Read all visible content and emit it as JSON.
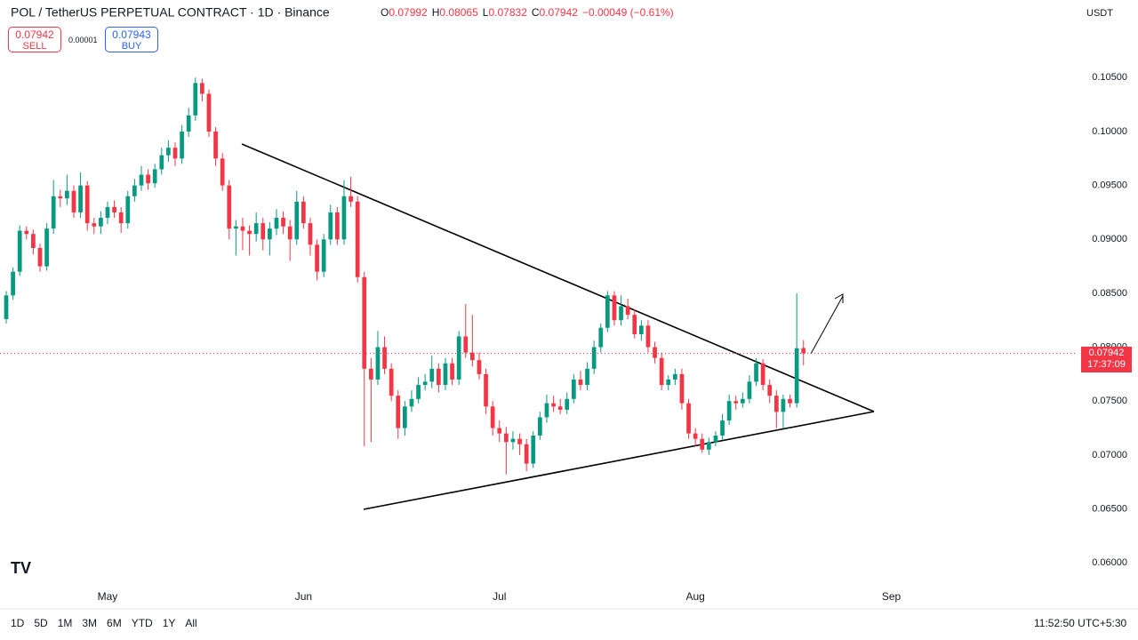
{
  "chart_data": {
    "type": "candlestick",
    "title": "POL / TetherUS PERPETUAL CONTRACT · 1D · Binance",
    "up_color": "#089981",
    "down_color": "#f23645",
    "xlim": [
      -0.92,
      158.3
    ],
    "ylim": [
      0.0582,
      0.1122
    ],
    "xticks": [
      {
        "value": 15,
        "label": "May"
      },
      {
        "value": 44,
        "label": "Jun"
      },
      {
        "value": 73,
        "label": "Jul"
      },
      {
        "value": 102,
        "label": "Aug"
      },
      {
        "value": 131,
        "label": "Sep"
      }
    ],
    "yticks": [
      {
        "value": 0.105,
        "label": "0.10500"
      },
      {
        "value": 0.1,
        "label": "0.10000"
      },
      {
        "value": 0.095,
        "label": "0.09500"
      },
      {
        "value": 0.09,
        "label": "0.09000"
      },
      {
        "value": 0.085,
        "label": "0.08500"
      },
      {
        "value": 0.08,
        "label": "0.08000"
      },
      {
        "value": 0.075,
        "label": "0.07500"
      },
      {
        "value": 0.07,
        "label": "0.07000"
      },
      {
        "value": 0.065,
        "label": "0.06500"
      },
      {
        "value": 0.06,
        "label": "0.06000"
      }
    ],
    "candles": [
      [
        0.0826,
        0.0852,
        0.0822,
        0.0848
      ],
      [
        0.0848,
        0.0874,
        0.0844,
        0.087
      ],
      [
        0.087,
        0.0913,
        0.0866,
        0.0908
      ],
      [
        0.0908,
        0.0912,
        0.09,
        0.0905
      ],
      [
        0.0905,
        0.0909,
        0.0886,
        0.0892
      ],
      [
        0.0892,
        0.0896,
        0.087,
        0.0875
      ],
      [
        0.0875,
        0.0915,
        0.0871,
        0.091
      ],
      [
        0.091,
        0.0955,
        0.0905,
        0.094
      ],
      [
        0.094,
        0.0946,
        0.093,
        0.0938
      ],
      [
        0.0938,
        0.096,
        0.0932,
        0.0945
      ],
      [
        0.0945,
        0.095,
        0.092,
        0.0925
      ],
      [
        0.0925,
        0.0962,
        0.092,
        0.095
      ],
      [
        0.095,
        0.0954,
        0.0908,
        0.0915
      ],
      [
        0.0915,
        0.092,
        0.0905,
        0.0912
      ],
      [
        0.0912,
        0.0926,
        0.0905,
        0.092
      ],
      [
        0.092,
        0.0935,
        0.0914,
        0.093
      ],
      [
        0.093,
        0.0936,
        0.092,
        0.0925
      ],
      [
        0.0925,
        0.093,
        0.0906,
        0.0915
      ],
      [
        0.0915,
        0.0945,
        0.091,
        0.094
      ],
      [
        0.094,
        0.0956,
        0.0935,
        0.095
      ],
      [
        0.095,
        0.0968,
        0.0945,
        0.096
      ],
      [
        0.096,
        0.0965,
        0.0946,
        0.0952
      ],
      [
        0.0952,
        0.097,
        0.0948,
        0.0965
      ],
      [
        0.0965,
        0.0985,
        0.096,
        0.0978
      ],
      [
        0.0978,
        0.0992,
        0.0972,
        0.0985
      ],
      [
        0.0985,
        0.099,
        0.0968,
        0.0975
      ],
      [
        0.0975,
        0.1006,
        0.097,
        0.1
      ],
      [
        0.1,
        0.1022,
        0.0995,
        0.1015
      ],
      [
        0.1015,
        0.105,
        0.101,
        0.1045
      ],
      [
        0.1045,
        0.1049,
        0.1028,
        0.1035
      ],
      [
        0.1035,
        0.1039,
        0.0995,
        0.1
      ],
      [
        0.1,
        0.1004,
        0.0968,
        0.0975
      ],
      [
        0.0975,
        0.098,
        0.0945,
        0.095
      ],
      [
        0.095,
        0.0955,
        0.09,
        0.091
      ],
      [
        0.091,
        0.0918,
        0.0885,
        0.0912
      ],
      [
        0.0912,
        0.092,
        0.089,
        0.0908
      ],
      [
        0.0908,
        0.0913,
        0.0885,
        0.0905
      ],
      [
        0.0905,
        0.0925,
        0.0898,
        0.0915
      ],
      [
        0.0915,
        0.092,
        0.089,
        0.09
      ],
      [
        0.09,
        0.0916,
        0.0885,
        0.091
      ],
      [
        0.091,
        0.0928,
        0.0904,
        0.092
      ],
      [
        0.092,
        0.0926,
        0.0905,
        0.0912
      ],
      [
        0.0912,
        0.0918,
        0.088,
        0.09
      ],
      [
        0.09,
        0.0945,
        0.0895,
        0.0935
      ],
      [
        0.0935,
        0.094,
        0.091,
        0.0915
      ],
      [
        0.0915,
        0.092,
        0.0885,
        0.0895
      ],
      [
        0.0895,
        0.09,
        0.0862,
        0.087
      ],
      [
        0.087,
        0.0905,
        0.0865,
        0.09
      ],
      [
        0.09,
        0.0932,
        0.0895,
        0.0925
      ],
      [
        0.0925,
        0.093,
        0.0895,
        0.09
      ],
      [
        0.09,
        0.0955,
        0.0895,
        0.094
      ],
      [
        0.094,
        0.0958,
        0.093,
        0.0935
      ],
      [
        0.0935,
        0.094,
        0.086,
        0.0865
      ],
      [
        0.0865,
        0.087,
        0.0708,
        0.078
      ],
      [
        0.078,
        0.079,
        0.0712,
        0.077
      ],
      [
        0.077,
        0.0815,
        0.0765,
        0.08
      ],
      [
        0.08,
        0.081,
        0.0775,
        0.078
      ],
      [
        0.078,
        0.0785,
        0.075,
        0.0755
      ],
      [
        0.0755,
        0.076,
        0.0715,
        0.0725
      ],
      [
        0.0725,
        0.075,
        0.0718,
        0.0745
      ],
      [
        0.0745,
        0.076,
        0.074,
        0.0752
      ],
      [
        0.0752,
        0.0772,
        0.0748,
        0.0765
      ],
      [
        0.0765,
        0.0775,
        0.076,
        0.0768
      ],
      [
        0.0768,
        0.0792,
        0.0762,
        0.078
      ],
      [
        0.078,
        0.0785,
        0.0758,
        0.0765
      ],
      [
        0.0765,
        0.079,
        0.076,
        0.0785
      ],
      [
        0.0785,
        0.079,
        0.0765,
        0.077
      ],
      [
        0.077,
        0.0815,
        0.0765,
        0.081
      ],
      [
        0.081,
        0.084,
        0.079,
        0.0795
      ],
      [
        0.0795,
        0.083,
        0.0782,
        0.0788
      ],
      [
        0.0788,
        0.0795,
        0.077,
        0.0775
      ],
      [
        0.0775,
        0.078,
        0.0738,
        0.0745
      ],
      [
        0.0745,
        0.075,
        0.0718,
        0.0725
      ],
      [
        0.0725,
        0.0732,
        0.0712,
        0.072
      ],
      [
        0.072,
        0.0726,
        0.0682,
        0.0712
      ],
      [
        0.0712,
        0.0722,
        0.0705,
        0.0715
      ],
      [
        0.0715,
        0.072,
        0.07,
        0.071
      ],
      [
        0.071,
        0.0715,
        0.0685,
        0.0692
      ],
      [
        0.0692,
        0.0722,
        0.0688,
        0.0718
      ],
      [
        0.0718,
        0.074,
        0.0714,
        0.0735
      ],
      [
        0.0735,
        0.0756,
        0.073,
        0.0748
      ],
      [
        0.0748,
        0.0755,
        0.074,
        0.0745
      ],
      [
        0.0745,
        0.0752,
        0.0738,
        0.0742
      ],
      [
        0.0742,
        0.0758,
        0.0738,
        0.0752
      ],
      [
        0.0752,
        0.0775,
        0.0748,
        0.077
      ],
      [
        0.077,
        0.0778,
        0.076,
        0.0765
      ],
      [
        0.0765,
        0.0786,
        0.076,
        0.078
      ],
      [
        0.078,
        0.0806,
        0.0775,
        0.08
      ],
      [
        0.08,
        0.0822,
        0.0795,
        0.0818
      ],
      [
        0.0818,
        0.0852,
        0.0814,
        0.0848
      ],
      [
        0.0848,
        0.0852,
        0.082,
        0.0825
      ],
      [
        0.0825,
        0.0848,
        0.082,
        0.0838
      ],
      [
        0.0838,
        0.0845,
        0.0826,
        0.083
      ],
      [
        0.083,
        0.0835,
        0.0808,
        0.0812
      ],
      [
        0.0812,
        0.0825,
        0.0806,
        0.082
      ],
      [
        0.082,
        0.0825,
        0.0795,
        0.08
      ],
      [
        0.08,
        0.0805,
        0.0785,
        0.079
      ],
      [
        0.079,
        0.0795,
        0.076,
        0.0765
      ],
      [
        0.0765,
        0.0774,
        0.076,
        0.077
      ],
      [
        0.077,
        0.078,
        0.0765,
        0.0775
      ],
      [
        0.0775,
        0.078,
        0.0742,
        0.0748
      ],
      [
        0.0748,
        0.0752,
        0.0715,
        0.072
      ],
      [
        0.072,
        0.0725,
        0.0708,
        0.0715
      ],
      [
        0.0715,
        0.072,
        0.0702,
        0.0705
      ],
      [
        0.0705,
        0.0716,
        0.07,
        0.0712
      ],
      [
        0.0712,
        0.0722,
        0.0708,
        0.0718
      ],
      [
        0.0718,
        0.0738,
        0.0714,
        0.0732
      ],
      [
        0.0732,
        0.0756,
        0.0728,
        0.075
      ],
      [
        0.075,
        0.0755,
        0.0742,
        0.0748
      ],
      [
        0.0748,
        0.0758,
        0.0744,
        0.0752
      ],
      [
        0.0752,
        0.0774,
        0.0748,
        0.0768
      ],
      [
        0.0768,
        0.079,
        0.0764,
        0.0785
      ],
      [
        0.0785,
        0.0789,
        0.076,
        0.0765
      ],
      [
        0.0765,
        0.077,
        0.0748,
        0.0755
      ],
      [
        0.0755,
        0.076,
        0.0725,
        0.074
      ],
      [
        0.074,
        0.0756,
        0.0725,
        0.0752
      ],
      [
        0.0752,
        0.0756,
        0.0744,
        0.0748
      ],
      [
        0.0748,
        0.085,
        0.0744,
        0.0799
      ],
      [
        0.07992,
        0.08065,
        0.07832,
        0.07942
      ]
    ]
  },
  "ui": {
    "ohlc": [
      {
        "label": "O",
        "value": "0.07992"
      },
      {
        "label": "H",
        "value": "0.08065"
      },
      {
        "label": "L",
        "value": "0.07832"
      },
      {
        "label": "C",
        "value": "0.07942"
      }
    ],
    "change": "−0.00049 (−0.61%)",
    "sell_price": "0.07942",
    "sell": "SELL",
    "spread": "0.00001",
    "buy_price": "0.07943",
    "buy": "BUY",
    "currency": "USDT",
    "price_label": "0.07942",
    "countdown": "17:37:09",
    "ranges": [
      "1D",
      "5D",
      "1M",
      "3M",
      "6M",
      "YTD",
      "1Y",
      "All"
    ],
    "clock": "11:52:50 UTC+5:30"
  }
}
